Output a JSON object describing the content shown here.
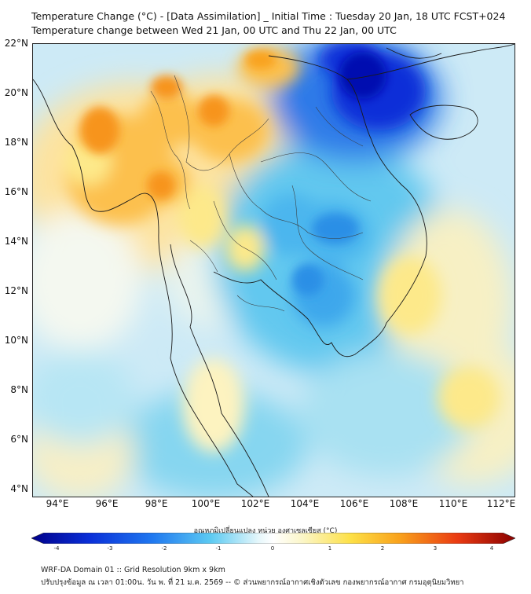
{
  "title": {
    "line1": "Temperature Change (°C) - [Data Assimilation] _ Initial Time : Tuesday 20 Jan, 18 UTC FCST+024",
    "line2": "Temperature change between Wed 21 Jan, 00 UTC and Thu 22 Jan, 00 UTC"
  },
  "map": {
    "lon_range": [
      93,
      112.5
    ],
    "lat_range": [
      4,
      22.2
    ],
    "lat_labels": [
      "22°N",
      "20°N",
      "18°N",
      "16°N",
      "14°N",
      "12°N",
      "10°N",
      "8°N",
      "6°N",
      "4°N"
    ],
    "lat_values": [
      22,
      20,
      18,
      16,
      14,
      12,
      10,
      8,
      6,
      4
    ],
    "lon_labels": [
      "94°E",
      "96°E",
      "98°E",
      "100°E",
      "102°E",
      "104°E",
      "106°E",
      "108°E",
      "110°E",
      "112°E"
    ],
    "lon_values": [
      94,
      96,
      98,
      100,
      102,
      104,
      106,
      108,
      110,
      112
    ]
  },
  "colorbar": {
    "title": "อุณหภูมิเปลี่ยนแปลง หน่วย องศาเซลเซียส (°C)",
    "min": -4,
    "max": 4,
    "ticks": [
      "-4",
      "-3",
      "-2",
      "-1",
      "0",
      "1",
      "2",
      "3",
      "4"
    ],
    "colors": [
      "#00008a",
      "#0a2fd8",
      "#1f78f0",
      "#5ccaf2",
      "#e6f7fb",
      "#ffffff",
      "#fbf6c8",
      "#fde046",
      "#f9a21c",
      "#ea3b12",
      "#8a0000"
    ]
  },
  "footer": {
    "line1": "WRF-DA Domain 01 :: Grid Resolution 9km x 9km",
    "line2": "ปรับปรุงข้อมูล ณ เวลา 01:00น. วัน พ. ที่ 21 ม.ค. 2569 -- © ส่วนพยากรณ์อากาศเชิงตัวเลข กองพยากรณ์อากาศ กรมอุตุนิยมวิทยา"
  }
}
